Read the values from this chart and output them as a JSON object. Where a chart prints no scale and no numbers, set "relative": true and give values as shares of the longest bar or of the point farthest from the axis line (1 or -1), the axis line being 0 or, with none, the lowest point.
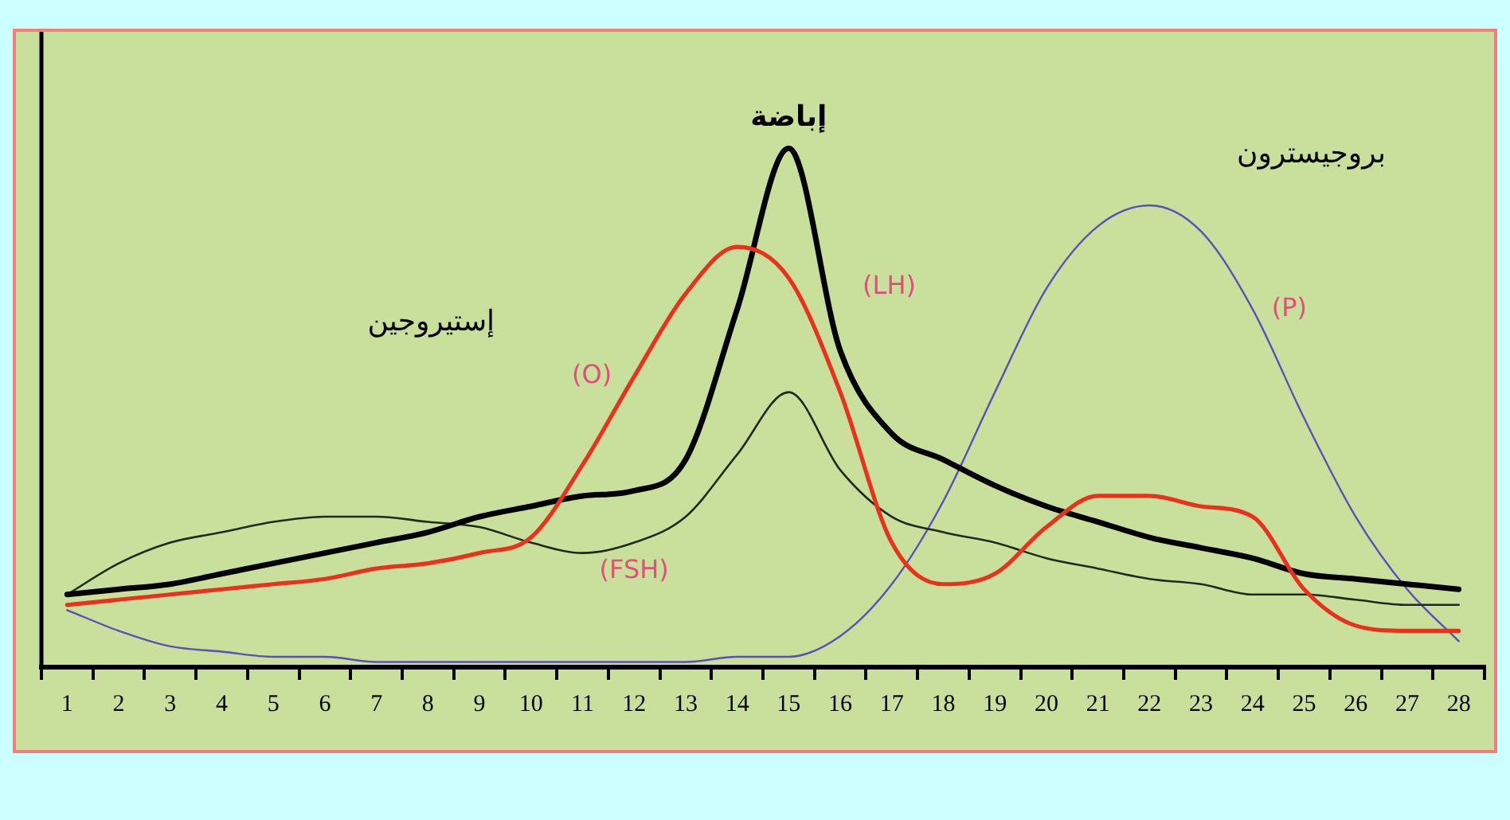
{
  "chart_data": {
    "type": "line",
    "relative": true,
    "legend": false,
    "grid": false,
    "categories": [
      "1",
      "2",
      "3",
      "4",
      "5",
      "6",
      "7",
      "8",
      "9",
      "10",
      "11",
      "12",
      "13",
      "14",
      "15",
      "16",
      "17",
      "18",
      "19",
      "20",
      "21",
      "22",
      "23",
      "24",
      "25",
      "26",
      "27",
      "28"
    ],
    "series": [
      {
        "name": "(O)",
        "color": "#e8321e",
        "values": [
          0.12,
          0.13,
          0.14,
          0.15,
          0.16,
          0.17,
          0.19,
          0.2,
          0.22,
          0.25,
          0.39,
          0.56,
          0.72,
          0.81,
          0.75,
          0.53,
          0.24,
          0.16,
          0.18,
          0.27,
          0.33,
          0.33,
          0.31,
          0.29,
          0.15,
          0.08,
          0.07,
          0.07
        ]
      },
      {
        "name": "(LH)",
        "color": "#000000",
        "values": [
          0.14,
          0.15,
          0.16,
          0.18,
          0.2,
          0.22,
          0.24,
          0.26,
          0.29,
          0.31,
          0.33,
          0.34,
          0.4,
          0.69,
          1,
          0.61,
          0.45,
          0.4,
          0.35,
          0.31,
          0.28,
          0.25,
          0.23,
          0.21,
          0.18,
          0.17,
          0.16,
          0.15
        ]
      },
      {
        "name": "(FSH)",
        "color": "#1f2a1a",
        "values": [
          0.14,
          0.2,
          0.24,
          0.26,
          0.28,
          0.29,
          0.29,
          0.28,
          0.27,
          0.24,
          0.22,
          0.24,
          0.29,
          0.41,
          0.53,
          0.38,
          0.29,
          0.26,
          0.24,
          0.21,
          0.19,
          0.17,
          0.16,
          0.14,
          0.14,
          0.13,
          0.12,
          0.12
        ]
      },
      {
        "name": "(P)",
        "color": "#5a50b8",
        "values": [
          0.11,
          0.07,
          0.04,
          0.03,
          0.02,
          0.02,
          0.01,
          0.01,
          0.01,
          0.01,
          0.01,
          0.01,
          0.01,
          0.02,
          0.02,
          0.06,
          0.16,
          0.32,
          0.53,
          0.73,
          0.85,
          0.89,
          0.84,
          0.69,
          0.48,
          0.29,
          0.15,
          0.05
        ]
      }
    ],
    "annotations": [
      {
        "text": "إباضة",
        "x": "15",
        "y": 1
      },
      "إستيروجين",
      "بروجيسترون"
    ]
  }
}
